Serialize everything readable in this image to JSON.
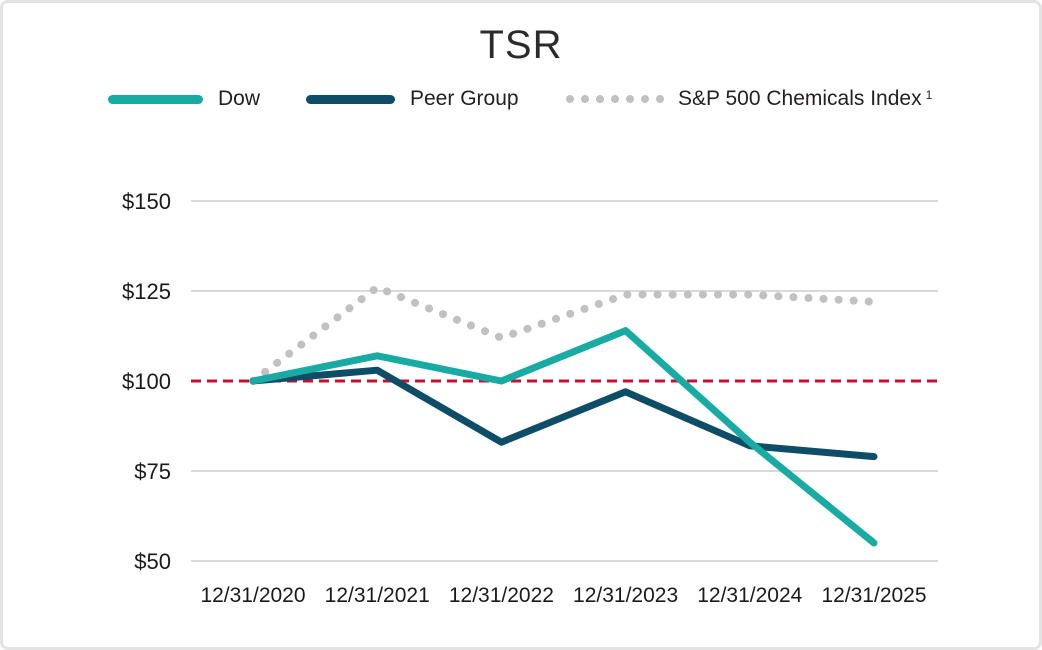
{
  "chart_data": {
    "type": "line",
    "title": "TSR",
    "categories": [
      "12/31/2020",
      "12/31/2021",
      "12/31/2022",
      "12/31/2023",
      "12/31/2024",
      "12/31/2025"
    ],
    "series": [
      {
        "name": "Dow",
        "color": "#17aba4",
        "line_style": "solid",
        "values": [
          100,
          107,
          100,
          114,
          83,
          55
        ]
      },
      {
        "name": "Peer Group",
        "color": "#0e4d68",
        "line_style": "solid",
        "values": [
          100,
          103,
          83,
          97,
          82,
          79
        ]
      },
      {
        "name": "S&P 500 Chemicals Index",
        "footnote": "1",
        "color": "#c1c1c1",
        "line_style": "dotted",
        "values": [
          100,
          126,
          112,
          124,
          124,
          122
        ]
      }
    ],
    "y_ticks": [
      {
        "value": 150,
        "label": "$150"
      },
      {
        "value": 125,
        "label": "$125"
      },
      {
        "value": 100,
        "label": "$100"
      },
      {
        "value": 75,
        "label": "$75"
      },
      {
        "value": 50,
        "label": "$50"
      }
    ],
    "ylim": [
      50,
      150
    ],
    "baseline": {
      "value": 100,
      "color": "#c8102e",
      "style": "dashed"
    },
    "grid": true,
    "legend_position": "top",
    "gridline_color": "#d9d9d9",
    "axis_text_color": "#1a1a1a"
  }
}
